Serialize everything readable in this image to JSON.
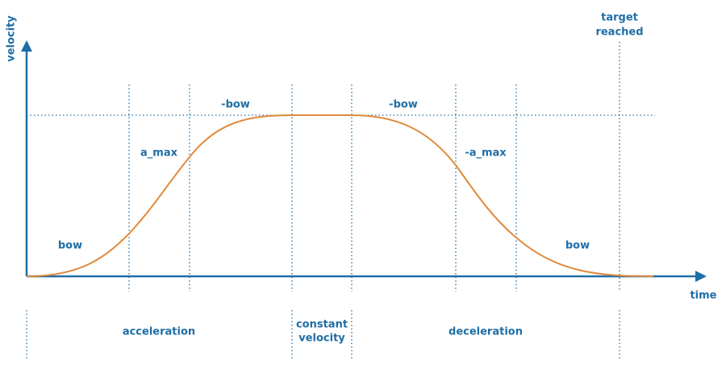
{
  "axes": {
    "y_label": "velocity",
    "x_label": "time"
  },
  "marker": {
    "label_lines": [
      "target",
      "reached"
    ]
  },
  "segment_labels": [
    "bow",
    "a_max",
    "-bow",
    "-bow",
    "-a_max",
    "bow"
  ],
  "phases": [
    {
      "lines": [
        "acceleration"
      ]
    },
    {
      "lines": [
        "constant",
        "velocity"
      ]
    },
    {
      "lines": [
        "deceleration"
      ]
    }
  ]
}
